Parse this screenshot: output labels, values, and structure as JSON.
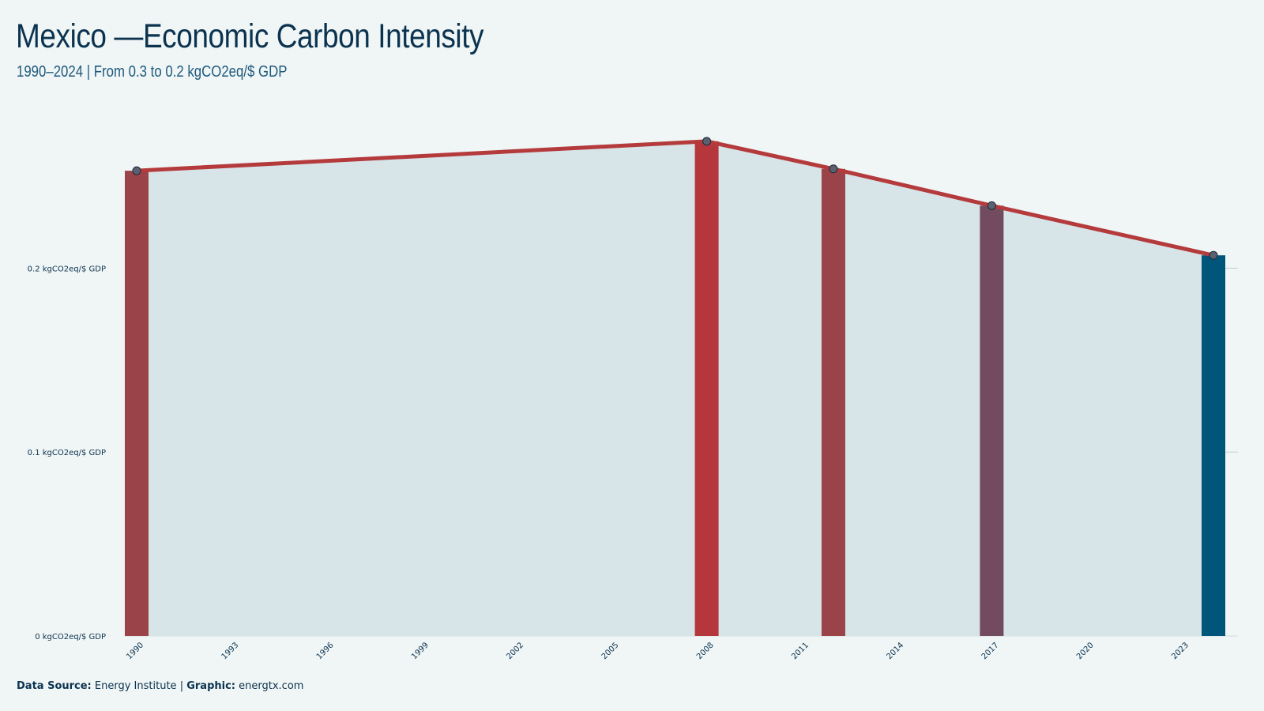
{
  "title": "Mexico —Economic Carbon Intensity",
  "subtitle": "1990–2024 | From 0.3 to 0.2 kgCO2eq/$ GDP",
  "footer": {
    "source_label": "Data Source:",
    "source_value": "Energy Institute",
    "separator": "|",
    "graphic_label": "Graphic:",
    "graphic_value": "energtx.com"
  },
  "chart_data": {
    "type": "bar",
    "x": [
      1990,
      2008,
      2012,
      2017,
      2024
    ],
    "values": [
      0.253,
      0.269,
      0.254,
      0.234,
      0.207
    ],
    "bar_colors": [
      "#9a4349",
      "#b5373c",
      "#9a4349",
      "#724c5e",
      "#00567a"
    ],
    "line_color": "#b43a3c",
    "area_color": "#d7e4e8",
    "ylim": [
      0,
      0.29
    ],
    "y_ticks": [
      0,
      0.1,
      0.2
    ],
    "y_tick_labels": [
      "0 kgCO2eq/$ GDP",
      "0.1 kgCO2eq/$ GDP",
      "0.2 kgCO2eq/$ GDP"
    ],
    "xlim": [
      1990,
      2024
    ],
    "x_ticks": [
      1990,
      1993,
      1996,
      1999,
      2002,
      2005,
      2008,
      2011,
      2014,
      2017,
      2020,
      2023
    ],
    "grid": true
  }
}
